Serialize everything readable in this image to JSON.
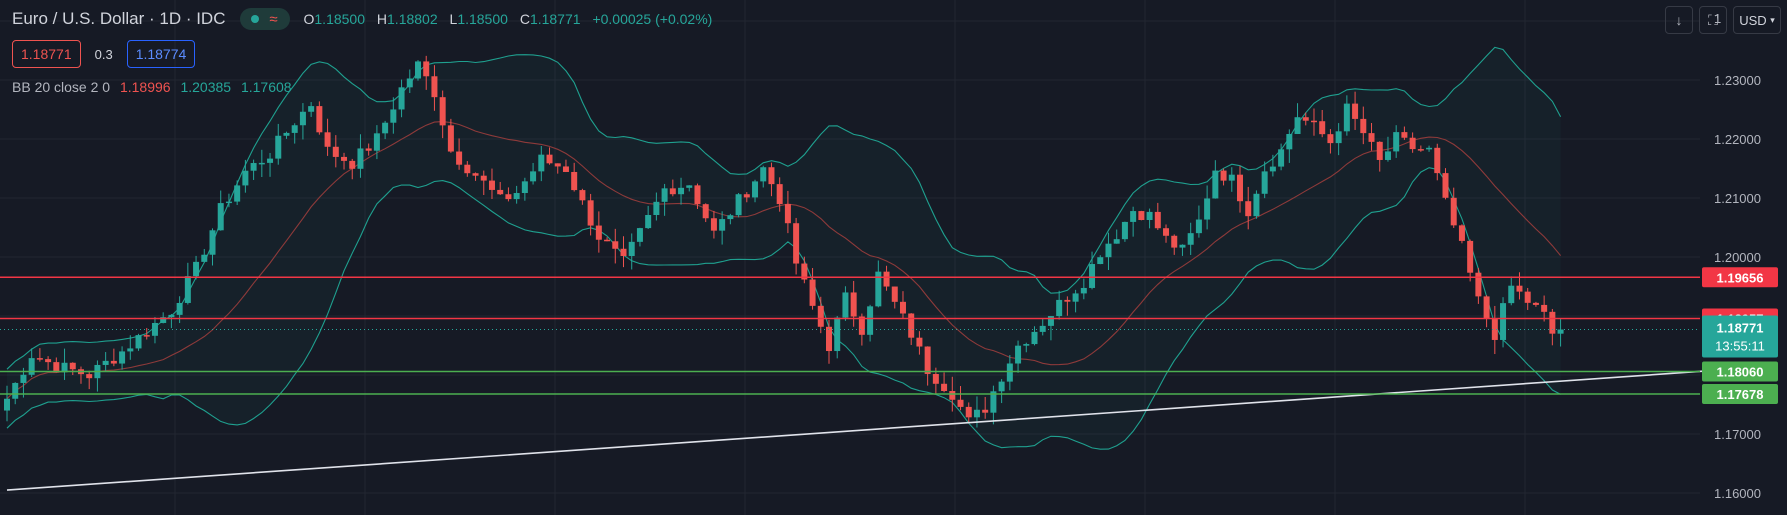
{
  "header": {
    "title": "Euro / U.S. Dollar · 1D · IDC",
    "ohlc": {
      "open_label": "O",
      "open": "1.18500",
      "high_label": "H",
      "high": "1.18802",
      "low_label": "L",
      "low": "1.18500",
      "close_label": "C",
      "close": "1.18771",
      "change": "+0.00025 (+0.02%)"
    },
    "wave_glyph": "≈"
  },
  "quote": {
    "bid": "1.18771",
    "spread": "0.3",
    "ask": "1.18774"
  },
  "indicator": {
    "label": "BB 20 close 2 0",
    "basis": "1.18996",
    "upper": "1.20385",
    "lower": "1.17608"
  },
  "toolbar": {
    "currency": "USD",
    "arrow_icon": "arrow-down-icon",
    "fullscreen_icon": "fullscreen-icon"
  },
  "colors": {
    "background": "#161a25",
    "up": "#26a69a",
    "down": "#ef5350",
    "support": "#4caf50",
    "resistance": "#f23645",
    "trendline": "#e0e3eb",
    "band": "#1fa08f"
  },
  "chart_data": {
    "type": "candlestick",
    "symbol": "EURUSD",
    "timeframe": "1D",
    "ylim": [
      1.1575,
      1.2425
    ],
    "y_ticks": [
      "1.23000",
      "1.22000",
      "1.21000",
      "1.20000",
      "1.17000",
      "1.16000"
    ],
    "top_tick_partial": "1",
    "grid": true,
    "candle_count": 190,
    "last_price": "1.18771",
    "countdown": "13:55:11",
    "horizontal_levels": [
      {
        "price": 1.19656,
        "label": "1.19656",
        "kind": "resistance"
      },
      {
        "price": 1.18957,
        "label": "1.18957",
        "kind": "resistance"
      },
      {
        "price": 1.1806,
        "label": "1.18060",
        "kind": "support"
      },
      {
        "price": 1.17678,
        "label": "1.17678",
        "kind": "support"
      }
    ],
    "trendline": {
      "from_index": 0,
      "from_price": 1.1605,
      "to_index": 212,
      "to_price": 1.1812
    },
    "close_path": [
      [
        0,
        1.176
      ],
      [
        3,
        1.1835
      ],
      [
        6,
        1.1815
      ],
      [
        10,
        1.18
      ],
      [
        14,
        1.184
      ],
      [
        17,
        1.1875
      ],
      [
        20,
        1.191
      ],
      [
        23,
        1.198
      ],
      [
        26,
        1.208
      ],
      [
        29,
        1.2145
      ],
      [
        32,
        1.2175
      ],
      [
        35,
        1.223
      ],
      [
        37,
        1.226
      ],
      [
        39,
        1.218
      ],
      [
        42,
        1.216
      ],
      [
        45,
        1.22
      ],
      [
        48,
        1.2285
      ],
      [
        50,
        1.2325
      ],
      [
        52,
        1.228
      ],
      [
        54,
        1.218
      ],
      [
        57,
        1.214
      ],
      [
        60,
        1.2095
      ],
      [
        62,
        1.211
      ],
      [
        65,
        1.2165
      ],
      [
        68,
        1.215
      ],
      [
        70,
        1.209
      ],
      [
        72,
        1.2035
      ],
      [
        75,
        1.199
      ],
      [
        77,
        1.204
      ],
      [
        80,
        1.2115
      ],
      [
        83,
        1.2125
      ],
      [
        86,
        1.204
      ],
      [
        89,
        1.2095
      ],
      [
        92,
        1.215
      ],
      [
        94,
        1.21
      ],
      [
        96,
        1.199
      ],
      [
        98,
        1.1915
      ],
      [
        100,
        1.185
      ],
      [
        102,
        1.193
      ],
      [
        104,
        1.188
      ],
      [
        106,
        1.197
      ],
      [
        108,
        1.192
      ],
      [
        110,
        1.187
      ],
      [
        112,
        1.181
      ],
      [
        115,
        1.177
      ],
      [
        117,
        1.172
      ],
      [
        119,
        1.1745
      ],
      [
        121,
        1.18
      ],
      [
        123,
        1.185
      ],
      [
        126,
        1.189
      ],
      [
        128,
        1.192
      ],
      [
        131,
        1.196
      ],
      [
        133,
        1.201
      ],
      [
        135,
        1.204
      ],
      [
        137,
        1.208
      ],
      [
        139,
        1.207
      ],
      [
        141,
        1.203
      ],
      [
        143,
        1.201
      ],
      [
        145,
        1.206
      ],
      [
        147,
        1.215
      ],
      [
        149,
        1.213
      ],
      [
        151,
        1.208
      ],
      [
        153,
        1.215
      ],
      [
        155,
        1.218
      ],
      [
        157,
        1.224
      ],
      [
        159,
        1.222
      ],
      [
        161,
        1.2195
      ],
      [
        163,
        1.225
      ],
      [
        165,
        1.221
      ],
      [
        167,
        1.216
      ],
      [
        169,
        1.22
      ],
      [
        171,
        1.2185
      ],
      [
        173,
        1.218
      ],
      [
        175,
        1.209
      ],
      [
        177,
        1.2015
      ],
      [
        179,
        1.1925
      ],
      [
        181,
        1.187
      ],
      [
        183,
        1.195
      ],
      [
        185,
        1.1925
      ],
      [
        187,
        1.19
      ],
      [
        189,
        1.184
      ],
      [
        191,
        1.183
      ],
      [
        193,
        1.18
      ],
      [
        195,
        1.181
      ],
      [
        197,
        1.185
      ],
      [
        199,
        1.18771
      ]
    ]
  }
}
